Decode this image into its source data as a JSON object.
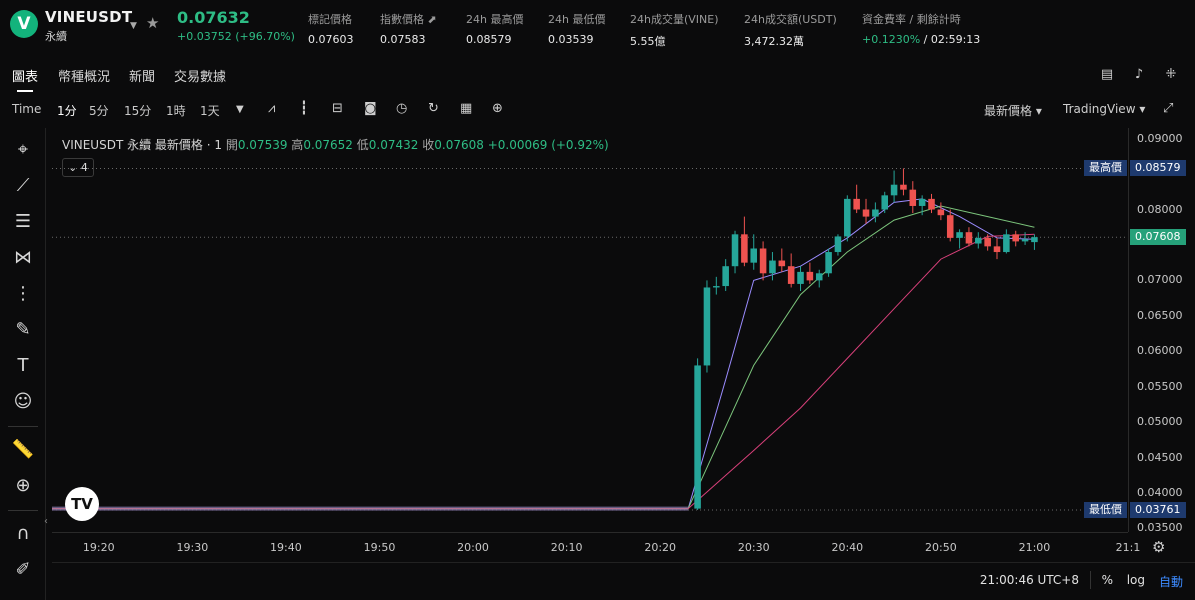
{
  "header": {
    "logo_letter": "V",
    "symbol": "VINEUSDT",
    "contract_type": "永續",
    "last_price": "0.07632",
    "change": "+0.03752",
    "change_pct": "(+96.70%)",
    "stats": [
      {
        "label": "標記價格",
        "value": "0.07603"
      },
      {
        "label": "指數價格 ⬈",
        "value": "0.07583"
      },
      {
        "label": "24h 最高價",
        "value": "0.08579"
      },
      {
        "label": "24h 最低價",
        "value": "0.03539"
      },
      {
        "label": "24h成交量(VINE)",
        "value": "5.55億"
      },
      {
        "label": "24h成交額(USDT)",
        "value": "3,472.32萬"
      },
      {
        "label": "資金費率 / 剩餘計時",
        "value": "+0.1230%",
        "value2": "/ 02:59:13"
      }
    ]
  },
  "tabs": [
    "圖表",
    "幣種概況",
    "新聞",
    "交易數據"
  ],
  "toolbar": {
    "time_label": "Time",
    "intervals": [
      "1分",
      "5分",
      "15分",
      "1時",
      "1天"
    ],
    "price_type": "最新價格 ▾",
    "view_mode": "TradingView ▾"
  },
  "legend": {
    "symbol_line": "VINEUSDT 永續 最新價格 · 1",
    "open_k": "開",
    "open_v": "0.07539",
    "high_k": "高",
    "high_v": "0.07652",
    "low_k": "低",
    "low_v": "0.07432",
    "close_k": "收",
    "close_v": "0.07608",
    "chg_v": "+0.00069 (+0.92%)",
    "indicator_count": "4"
  },
  "price_scale": {
    "ticks": [
      "0.09000",
      "0.08000",
      "0.07000",
      "0.06500",
      "0.06000",
      "0.05500",
      "0.05000",
      "0.04500",
      "0.04000",
      "0.03500"
    ],
    "high_label": "最高價",
    "high_value": "0.08579",
    "current_value": "0.07608",
    "low_label": "最低價",
    "low_value": "0.03761"
  },
  "time_axis": [
    "19:20",
    "19:30",
    "19:40",
    "19:50",
    "20:00",
    "20:10",
    "20:20",
    "20:30",
    "20:40",
    "20:50",
    "21:00",
    "21:1"
  ],
  "footer": {
    "clock": "21:00:46 UTC+8",
    "pct_btn": "%",
    "log_btn": "log",
    "auto_btn": "自動"
  },
  "chart_data": {
    "type": "candlestick",
    "x_range": [
      "19:15",
      "21:10"
    ],
    "y_range": [
      0.0345,
      0.0915
    ],
    "colors": {
      "up": "#26a69a",
      "down": "#ef5350"
    },
    "flat_period": {
      "from": "19:15",
      "to": "20:23",
      "level": 0.0378
    },
    "candles": [
      {
        "t": "20:24",
        "o": 0.0378,
        "h": 0.059,
        "l": 0.0376,
        "c": 0.058
      },
      {
        "t": "20:25",
        "o": 0.058,
        "h": 0.07,
        "l": 0.057,
        "c": 0.069
      },
      {
        "t": "20:26",
        "o": 0.069,
        "h": 0.0705,
        "l": 0.068,
        "c": 0.0692
      },
      {
        "t": "20:27",
        "o": 0.0692,
        "h": 0.073,
        "l": 0.0685,
        "c": 0.072
      },
      {
        "t": "20:28",
        "o": 0.072,
        "h": 0.077,
        "l": 0.071,
        "c": 0.0765
      },
      {
        "t": "20:29",
        "o": 0.0765,
        "h": 0.079,
        "l": 0.072,
        "c": 0.0725
      },
      {
        "t": "20:30",
        "o": 0.0725,
        "h": 0.0765,
        "l": 0.0715,
        "c": 0.0745
      },
      {
        "t": "20:31",
        "o": 0.0745,
        "h": 0.0755,
        "l": 0.07,
        "c": 0.071
      },
      {
        "t": "20:32",
        "o": 0.071,
        "h": 0.074,
        "l": 0.07,
        "c": 0.0728
      },
      {
        "t": "20:33",
        "o": 0.0728,
        "h": 0.0745,
        "l": 0.0712,
        "c": 0.072
      },
      {
        "t": "20:34",
        "o": 0.072,
        "h": 0.0738,
        "l": 0.069,
        "c": 0.0695
      },
      {
        "t": "20:35",
        "o": 0.0695,
        "h": 0.072,
        "l": 0.0685,
        "c": 0.0712
      },
      {
        "t": "20:36",
        "o": 0.0712,
        "h": 0.0725,
        "l": 0.0695,
        "c": 0.07
      },
      {
        "t": "20:37",
        "o": 0.07,
        "h": 0.0715,
        "l": 0.069,
        "c": 0.071
      },
      {
        "t": "20:38",
        "o": 0.071,
        "h": 0.0745,
        "l": 0.0705,
        "c": 0.074
      },
      {
        "t": "20:39",
        "o": 0.074,
        "h": 0.0765,
        "l": 0.0735,
        "c": 0.0762
      },
      {
        "t": "20:40",
        "o": 0.0762,
        "h": 0.082,
        "l": 0.0755,
        "c": 0.0815
      },
      {
        "t": "20:41",
        "o": 0.0815,
        "h": 0.0835,
        "l": 0.0795,
        "c": 0.08
      },
      {
        "t": "20:42",
        "o": 0.08,
        "h": 0.0815,
        "l": 0.078,
        "c": 0.079
      },
      {
        "t": "20:43",
        "o": 0.079,
        "h": 0.081,
        "l": 0.0782,
        "c": 0.08
      },
      {
        "t": "20:44",
        "o": 0.08,
        "h": 0.0825,
        "l": 0.0795,
        "c": 0.082
      },
      {
        "t": "20:45",
        "o": 0.082,
        "h": 0.0855,
        "l": 0.081,
        "c": 0.0835
      },
      {
        "t": "20:46",
        "o": 0.0835,
        "h": 0.0858,
        "l": 0.082,
        "c": 0.0828
      },
      {
        "t": "20:47",
        "o": 0.0828,
        "h": 0.084,
        "l": 0.0795,
        "c": 0.0805
      },
      {
        "t": "20:48",
        "o": 0.0805,
        "h": 0.082,
        "l": 0.0792,
        "c": 0.0815
      },
      {
        "t": "20:49",
        "o": 0.0815,
        "h": 0.0822,
        "l": 0.0795,
        "c": 0.08
      },
      {
        "t": "20:50",
        "o": 0.08,
        "h": 0.081,
        "l": 0.0785,
        "c": 0.0792
      },
      {
        "t": "20:51",
        "o": 0.0792,
        "h": 0.08,
        "l": 0.0755,
        "c": 0.076
      },
      {
        "t": "20:52",
        "o": 0.076,
        "h": 0.0772,
        "l": 0.0745,
        "c": 0.0768
      },
      {
        "t": "20:53",
        "o": 0.0768,
        "h": 0.0775,
        "l": 0.0748,
        "c": 0.0752
      },
      {
        "t": "20:54",
        "o": 0.0752,
        "h": 0.0768,
        "l": 0.0745,
        "c": 0.076
      },
      {
        "t": "20:55",
        "o": 0.076,
        "h": 0.0765,
        "l": 0.0742,
        "c": 0.0748
      },
      {
        "t": "20:56",
        "o": 0.0748,
        "h": 0.076,
        "l": 0.073,
        "c": 0.074
      },
      {
        "t": "20:57",
        "o": 0.074,
        "h": 0.0772,
        "l": 0.0738,
        "c": 0.0765
      },
      {
        "t": "20:58",
        "o": 0.0765,
        "h": 0.077,
        "l": 0.0748,
        "c": 0.0755
      },
      {
        "t": "20:59",
        "o": 0.0755,
        "h": 0.0768,
        "l": 0.075,
        "c": 0.0758
      },
      {
        "t": "21:00",
        "o": 0.0754,
        "h": 0.0765,
        "l": 0.0743,
        "c": 0.0761
      }
    ],
    "moving_averages": [
      {
        "color": "#9b8cff",
        "points": [
          [
            "20:23",
            0.0378
          ],
          [
            "20:27",
            0.056
          ],
          [
            "20:30",
            0.07
          ],
          [
            "20:35",
            0.072
          ],
          [
            "20:40",
            0.076
          ],
          [
            "20:45",
            0.081
          ],
          [
            "20:48",
            0.0815
          ],
          [
            "20:52",
            0.079
          ],
          [
            "20:56",
            0.076
          ],
          [
            "21:00",
            0.0758
          ]
        ]
      },
      {
        "color": "#7cc57c",
        "points": [
          [
            "20:23",
            0.0378
          ],
          [
            "20:30",
            0.058
          ],
          [
            "20:35",
            0.068
          ],
          [
            "20:40",
            0.074
          ],
          [
            "20:45",
            0.0785
          ],
          [
            "20:50",
            0.0805
          ],
          [
            "20:55",
            0.079
          ],
          [
            "21:00",
            0.0775
          ]
        ]
      },
      {
        "color": "#d8407a",
        "points": [
          [
            "20:23",
            0.0378
          ],
          [
            "20:30",
            0.046
          ],
          [
            "20:35",
            0.052
          ],
          [
            "20:40",
            0.059
          ],
          [
            "20:45",
            0.066
          ],
          [
            "20:50",
            0.073
          ],
          [
            "20:55",
            0.0762
          ],
          [
            "21:00",
            0.0765
          ]
        ]
      }
    ],
    "high_line": 0.08579,
    "low_line": 0.03761,
    "current_line": 0.07608
  }
}
